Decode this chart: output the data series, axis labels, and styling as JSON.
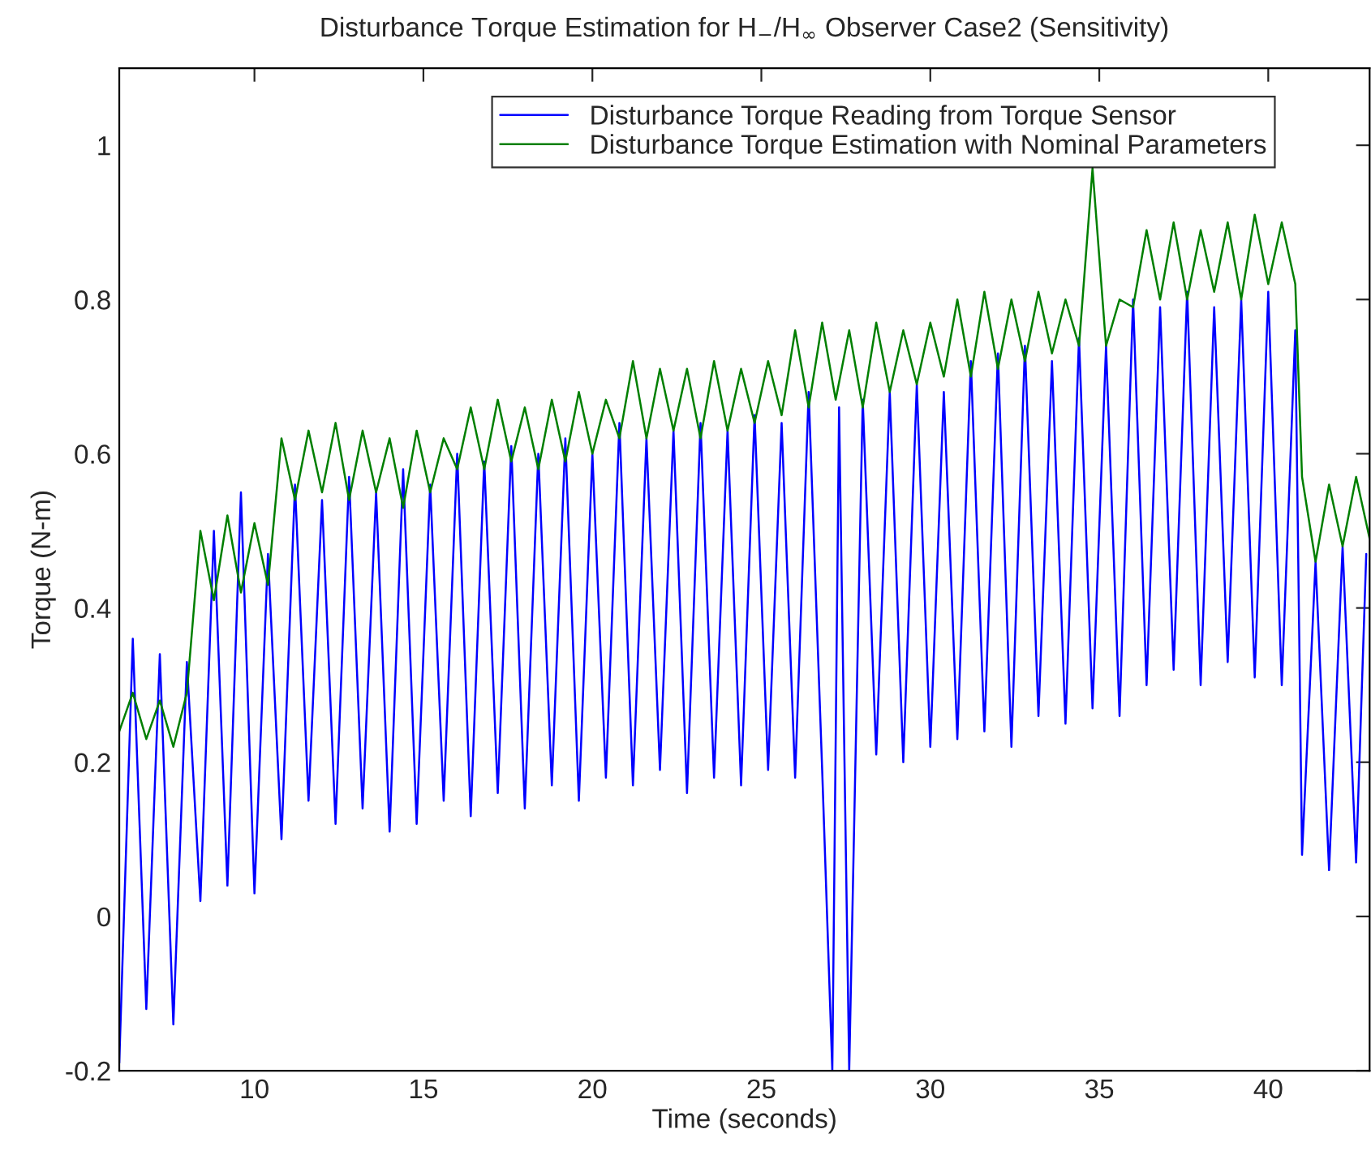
{
  "chart_data": {
    "type": "line",
    "title": "Disturbance Torque Estimation for H$_{−}$/H$_{∞}$ Observer Case2 (Sensitivity)",
    "xlabel": "Time (seconds)",
    "ylabel": "Torque (N-m)",
    "xlim": [
      6,
      43
    ],
    "ylim": [
      -0.2,
      1.1
    ],
    "xticks": [
      10,
      15,
      20,
      25,
      30,
      35,
      40
    ],
    "yticks": [
      -0.2,
      0,
      0.2,
      0.4,
      0.6,
      0.8,
      1
    ],
    "grid": false,
    "legend": "top right",
    "line_style": "solid",
    "marker": "none",
    "series": [
      {
        "name": "Disturbance Torque Reading from Torque Sensor",
        "color": "#0000ff",
        "x": [
          6.0,
          6.4,
          6.8,
          7.2,
          7.6,
          8.0,
          8.4,
          8.8,
          9.2,
          9.6,
          10.0,
          10.4,
          10.8,
          11.2,
          11.6,
          12.0,
          12.4,
          12.8,
          13.2,
          13.6,
          14.0,
          14.4,
          14.8,
          15.2,
          15.6,
          16.0,
          16.4,
          16.8,
          17.2,
          17.6,
          18.0,
          18.4,
          18.8,
          19.2,
          19.6,
          20.0,
          20.4,
          20.8,
          21.2,
          21.6,
          22.0,
          22.4,
          22.8,
          23.2,
          23.6,
          24.0,
          24.4,
          24.8,
          25.2,
          25.6,
          26.0,
          26.4,
          26.8,
          27.1,
          27.3,
          27.6,
          28.0,
          28.4,
          28.8,
          29.2,
          29.6,
          30.0,
          30.4,
          30.8,
          31.2,
          31.6,
          32.0,
          32.4,
          32.8,
          33.2,
          33.6,
          34.0,
          34.4,
          34.8,
          35.2,
          35.6,
          36.0,
          36.4,
          36.8,
          37.2,
          37.6,
          38.0,
          38.4,
          38.8,
          39.2,
          39.6,
          40.0,
          40.4,
          40.8,
          41.0,
          41.4,
          41.8,
          42.2,
          42.6,
          42.9
        ],
        "values": [
          -0.19,
          0.36,
          -0.12,
          0.34,
          -0.14,
          0.33,
          0.02,
          0.5,
          0.04,
          0.55,
          0.03,
          0.47,
          0.1,
          0.56,
          0.15,
          0.54,
          0.12,
          0.57,
          0.14,
          0.55,
          0.11,
          0.58,
          0.12,
          0.56,
          0.15,
          0.6,
          0.13,
          0.59,
          0.16,
          0.61,
          0.14,
          0.6,
          0.17,
          0.62,
          0.15,
          0.6,
          0.18,
          0.64,
          0.17,
          0.62,
          0.19,
          0.63,
          0.16,
          0.64,
          0.18,
          0.63,
          0.17,
          0.65,
          0.19,
          0.64,
          0.18,
          0.68,
          0.19,
          -0.2,
          0.66,
          -0.2,
          0.67,
          0.21,
          0.68,
          0.2,
          0.69,
          0.22,
          0.68,
          0.23,
          0.72,
          0.24,
          0.73,
          0.22,
          0.74,
          0.26,
          0.72,
          0.25,
          0.75,
          0.27,
          0.74,
          0.26,
          0.8,
          0.3,
          0.79,
          0.32,
          0.81,
          0.3,
          0.79,
          0.33,
          0.8,
          0.31,
          0.81,
          0.3,
          0.76,
          0.08,
          0.46,
          0.06,
          0.48,
          0.07,
          0.47
        ]
      },
      {
        "name": "Disturbance Torque Estimation with Nominal Parameters",
        "color": "#007f00",
        "x": [
          6.0,
          6.4,
          6.8,
          7.2,
          7.6,
          8.0,
          8.4,
          8.8,
          9.2,
          9.6,
          10.0,
          10.4,
          10.8,
          11.2,
          11.6,
          12.0,
          12.4,
          12.8,
          13.2,
          13.6,
          14.0,
          14.4,
          14.8,
          15.2,
          15.6,
          16.0,
          16.4,
          16.8,
          17.2,
          17.6,
          18.0,
          18.4,
          18.8,
          19.2,
          19.6,
          20.0,
          20.4,
          20.8,
          21.2,
          21.6,
          22.0,
          22.4,
          22.8,
          23.2,
          23.6,
          24.0,
          24.4,
          24.8,
          25.2,
          25.6,
          26.0,
          26.4,
          26.8,
          27.2,
          27.6,
          28.0,
          28.4,
          28.8,
          29.2,
          29.6,
          30.0,
          30.4,
          30.8,
          31.2,
          31.6,
          32.0,
          32.4,
          32.8,
          33.2,
          33.6,
          34.0,
          34.4,
          34.8,
          35.2,
          35.6,
          36.0,
          36.4,
          36.8,
          37.2,
          37.6,
          38.0,
          38.4,
          38.8,
          39.2,
          39.6,
          40.0,
          40.4,
          40.8,
          41.0,
          41.4,
          41.8,
          42.2,
          42.6,
          43.0
        ],
        "values": [
          0.24,
          0.29,
          0.23,
          0.28,
          0.22,
          0.29,
          0.5,
          0.41,
          0.52,
          0.42,
          0.51,
          0.43,
          0.62,
          0.54,
          0.63,
          0.55,
          0.64,
          0.54,
          0.63,
          0.55,
          0.62,
          0.53,
          0.63,
          0.55,
          0.62,
          0.58,
          0.66,
          0.58,
          0.67,
          0.59,
          0.66,
          0.58,
          0.67,
          0.59,
          0.68,
          0.6,
          0.67,
          0.62,
          0.72,
          0.62,
          0.71,
          0.63,
          0.71,
          0.62,
          0.72,
          0.63,
          0.71,
          0.64,
          0.72,
          0.65,
          0.76,
          0.66,
          0.77,
          0.67,
          0.76,
          0.66,
          0.77,
          0.68,
          0.76,
          0.69,
          0.77,
          0.7,
          0.8,
          0.7,
          0.81,
          0.71,
          0.8,
          0.72,
          0.81,
          0.73,
          0.8,
          0.74,
          0.97,
          0.74,
          0.8,
          0.79,
          0.89,
          0.8,
          0.9,
          0.8,
          0.89,
          0.81,
          0.9,
          0.8,
          0.91,
          0.82,
          0.9,
          0.82,
          0.57,
          0.46,
          0.56,
          0.48,
          0.57,
          0.49
        ]
      }
    ]
  }
}
